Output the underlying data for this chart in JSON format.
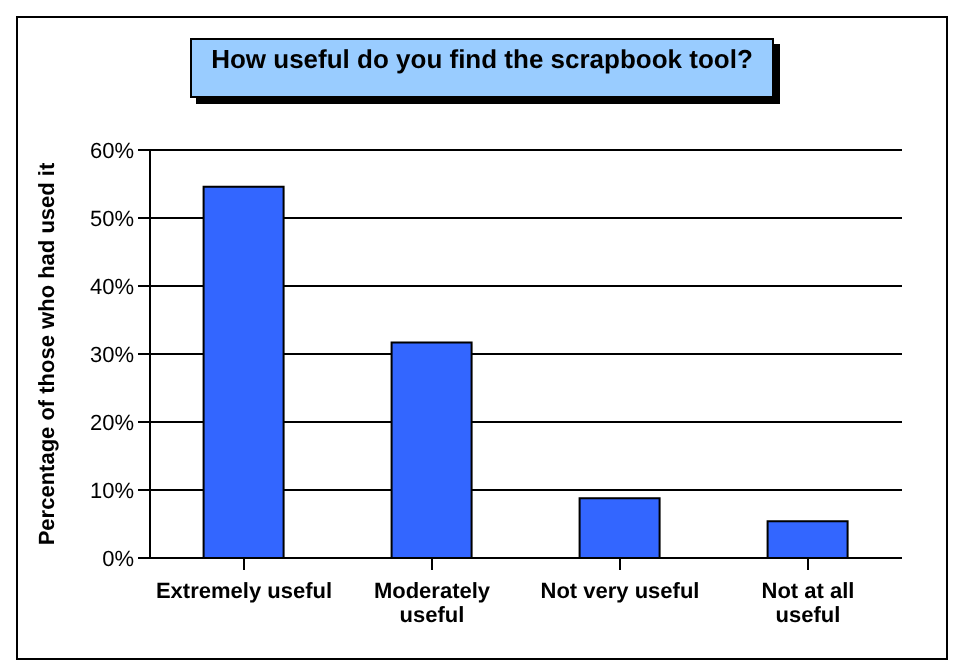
{
  "chart_data": {
    "type": "bar",
    "title": "How useful do you find the scrapbook tool?",
    "ylabel": "Percentage of those who had used it",
    "categories": [
      "Extremely useful",
      "Moderately useful",
      "Not very useful",
      "Not at all useful"
    ],
    "values": [
      54.6,
      31.7,
      8.8,
      5.4
    ],
    "color": "#3366ff",
    "ylim": [
      0,
      60
    ],
    "yticks": [
      {
        "value": 0,
        "label": "0%"
      },
      {
        "value": 10,
        "label": "10%"
      },
      {
        "value": 20,
        "label": "20%"
      },
      {
        "value": 30,
        "label": "30%"
      },
      {
        "value": 40,
        "label": "40%"
      },
      {
        "value": 50,
        "label": "50%"
      },
      {
        "value": 60,
        "label": "60%"
      }
    ],
    "grid": "y"
  }
}
